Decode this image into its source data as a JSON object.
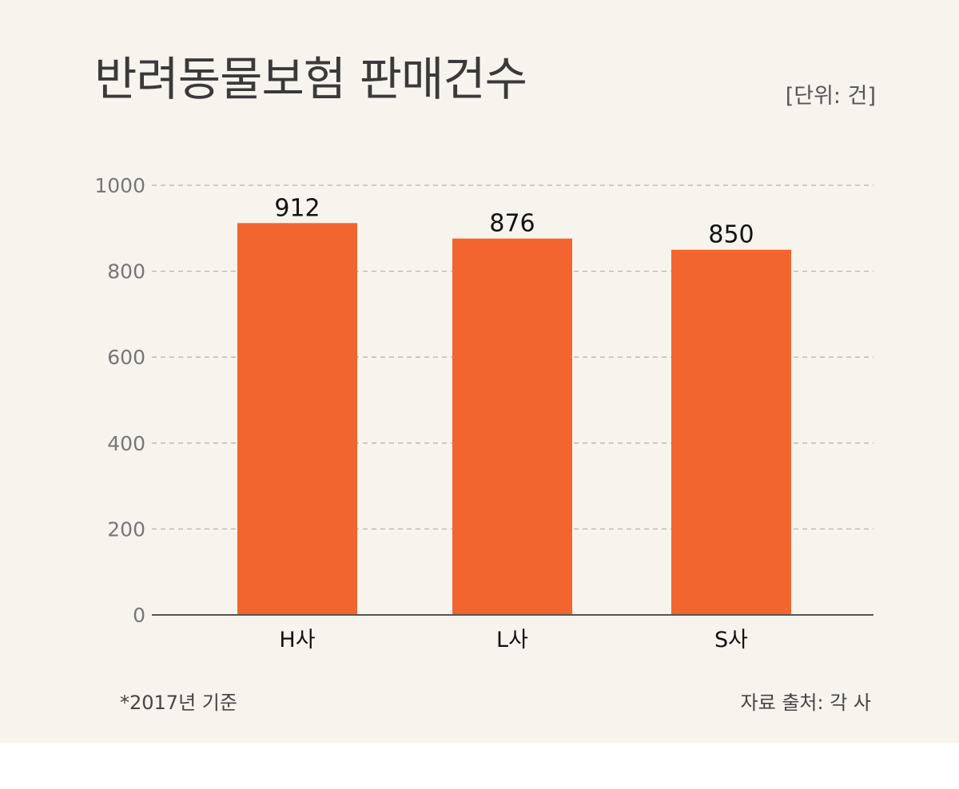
{
  "title": "반려동물보험 판매건수",
  "unit_note": "[단위: 건]",
  "footnote": "*2017년 기준",
  "source": "자료 출처: 각 사",
  "colors": {
    "bar": "#f2652f",
    "grid": "#b9b4ab",
    "axis": "#555555",
    "tick_text": "#777777",
    "label_text": "#111111",
    "background": "#f7f4ee"
  },
  "chart_data": {
    "type": "bar",
    "title": "반려동물보험 판매건수",
    "categories": [
      "H사",
      "L사",
      "S사"
    ],
    "values": [
      912,
      876,
      850
    ],
    "data_labels": [
      "912",
      "876",
      "850"
    ],
    "yticks": [
      "0",
      "200",
      "400",
      "600",
      "800",
      "1000"
    ],
    "ylim": [
      0,
      1000
    ],
    "xlabel": "",
    "ylabel": "",
    "grid": true,
    "legend": "none"
  }
}
